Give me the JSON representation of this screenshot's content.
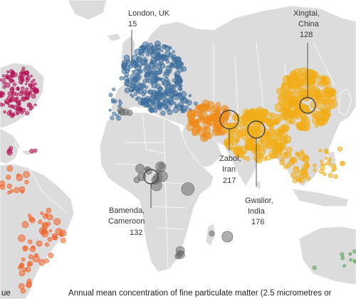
{
  "colors": {
    "water": "#ffffff",
    "land": "#dcdcdc",
    "border": "#ffffff",
    "north_america": "#b5165a",
    "latin_america": "#f0622a",
    "europe": "#3f6f9c",
    "africa": "#6e6e6e",
    "asia": "#f2ad16",
    "middle_east": "#ee8a18",
    "oceania": "#5aa25a",
    "leader": "#444444"
  },
  "callouts": [
    {
      "id": "london",
      "name": "London, UK",
      "value": "15",
      "marker": "none"
    },
    {
      "id": "xingtai",
      "name_lines": [
        "Xingtai,",
        "China"
      ],
      "value": "128",
      "marker": "ring"
    },
    {
      "id": "zabol",
      "name_lines": [
        "Zabol,",
        "Iran"
      ],
      "value": "217",
      "marker": "ring"
    },
    {
      "id": "gwalior",
      "name_lines": [
        "Gwalior,",
        "India"
      ],
      "value": "176",
      "marker": "ring"
    },
    {
      "id": "bamenda",
      "name_lines": [
        "Bamenda,",
        "Cameroon"
      ],
      "value": "132",
      "marker": "ring"
    }
  ],
  "caption": "Annual mean concentration of fine particulate matter (2.5 micrometres or",
  "caption_left_fragment": "ue"
}
